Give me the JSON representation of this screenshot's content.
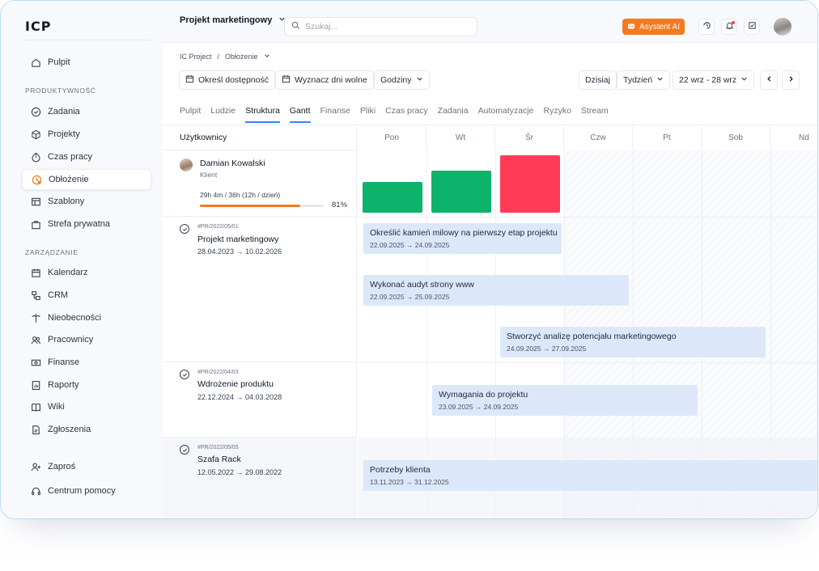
{
  "app": {
    "logo": "ICP"
  },
  "sidebar": {
    "items_top": [
      {
        "label": "Pulpit",
        "icon": "home-icon"
      }
    ],
    "section1": "PRODUKTYWNOŚĆ",
    "items1": [
      {
        "label": "Zadania",
        "icon": "check-circle-icon"
      },
      {
        "label": "Projekty",
        "icon": "cube-icon"
      },
      {
        "label": "Czas pracy",
        "icon": "stopwatch-icon"
      },
      {
        "label": "Obłożenie",
        "icon": "workload-icon",
        "active": true
      },
      {
        "label": "Szablony",
        "icon": "layout-icon"
      },
      {
        "label": "Strefa prywatna",
        "icon": "bag-icon"
      }
    ],
    "section2": "ZARZĄDZANIE",
    "items2": [
      {
        "label": "Kalendarz",
        "icon": "calendar-icon"
      },
      {
        "label": "CRM",
        "icon": "crm-icon"
      },
      {
        "label": "Nieobecności",
        "icon": "palm-icon"
      },
      {
        "label": "Pracownicy",
        "icon": "users-icon"
      },
      {
        "label": "Finanse",
        "icon": "money-icon"
      },
      {
        "label": "Raporty",
        "icon": "report-icon"
      },
      {
        "label": "Wiki",
        "icon": "book-icon"
      },
      {
        "label": "Zgłoszenia",
        "icon": "ticket-icon"
      }
    ],
    "items_bottom": [
      {
        "label": "Zaproś",
        "icon": "user-plus-icon"
      },
      {
        "label": "Centrum pomocy",
        "icon": "headset-icon"
      }
    ]
  },
  "topbar": {
    "project_select": "Projekt marketingowy",
    "search_placeholder": "Szukaj...",
    "ai_button": "Asystent AI"
  },
  "breadcrumb": {
    "root": "IC Project",
    "separator": "/",
    "current": "Obłożenie"
  },
  "toolbar": {
    "availability": "Określ dostępność",
    "days_off": "Wyznacz dni wolne",
    "hours": "Godziny",
    "today": "Dzisiaj",
    "week": "Tydzień",
    "range": "22 wrz - 28 wrz"
  },
  "tabs": [
    "Pulpit",
    "Ludzie",
    "Struktura",
    "Gantt",
    "Finanse",
    "Pliki",
    "Czas pracy",
    "Zadania",
    "Automatyzacje",
    "Ryzyko",
    "Stream"
  ],
  "active_tabs": [
    "Struktura",
    "Gantt"
  ],
  "grid": {
    "users_header": "Użytkownicy",
    "days": [
      "Pon",
      "Wt",
      "Śr",
      "Czw",
      "Pt",
      "Sob",
      "Nd"
    ],
    "user": {
      "name": "Damian Kowalski",
      "role": "Klient",
      "hours": "29h 4m / 36h (12h / dzień)",
      "percent": "81%",
      "progress": 0.81,
      "day_load": [
        {
          "day": "Pon",
          "status": "ok",
          "color": "#0db36b"
        },
        {
          "day": "Wt",
          "status": "ok",
          "color": "#0db36b"
        },
        {
          "day": "Śr",
          "status": "over",
          "color": "#ff3b57"
        }
      ]
    },
    "projects": [
      {
        "code": "#PR/2022/05/01",
        "name": "Projekt marketingowy",
        "dates": "28.04.2023 → 10.02.2026",
        "tasks": [
          {
            "title": "Określić kamień milowy na pierwszy etap projektu",
            "dates": "22.09.2025 → 24.09.2025"
          },
          {
            "title": "Wykonać audyt strony www",
            "dates": "22.09.2025 → 25.09.2025"
          },
          {
            "title": "Stworzyć analizę potencjału marketingowego",
            "dates": "24.09.2025 → 27.09.2025"
          }
        ]
      },
      {
        "code": "#PR/2022/04/03",
        "name": "Wdrożenie produktu",
        "dates": "22.12.2024 → 04.03.2028",
        "tasks": [
          {
            "title": "Wymagania do projektu",
            "dates": "23.09.2025 → 24.09.2025"
          }
        ]
      },
      {
        "code": "#PR/2022/05/05",
        "name": "Szafa Rack",
        "dates": "12.05.2022 → 29.08.2022",
        "tasks": [
          {
            "title": "Potrzeby klienta",
            "dates": "13.11.2023 → 31.12.2025"
          }
        ]
      }
    ]
  },
  "colors": {
    "accent": "#3b82f6",
    "ai": "#f47a20",
    "ok": "#0db36b",
    "over": "#ff3b57",
    "task": "#dce8fa"
  }
}
